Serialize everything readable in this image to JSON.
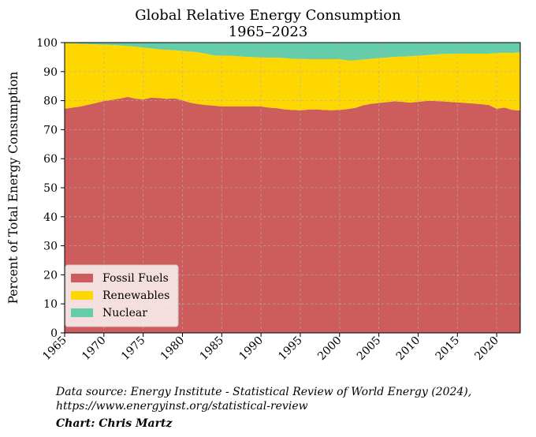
{
  "chart_data": {
    "type": "area",
    "stacked": true,
    "title_line1": "Global Relative Energy Consumption",
    "title_line2": "1965–2023",
    "xlabel": "",
    "ylabel": "Percent of Total Energy Consumption",
    "xlim": [
      1965,
      2023
    ],
    "ylim": [
      0,
      100
    ],
    "x_ticks": [
      1965,
      1970,
      1975,
      1980,
      1985,
      1990,
      1995,
      2000,
      2005,
      2010,
      2015,
      2020
    ],
    "y_ticks": [
      0,
      10,
      20,
      30,
      40,
      50,
      60,
      70,
      80,
      90,
      100
    ],
    "grid": true,
    "legend_position": "bottom-left",
    "x": [
      1965,
      1966,
      1967,
      1968,
      1969,
      1970,
      1971,
      1972,
      1973,
      1974,
      1975,
      1976,
      1977,
      1978,
      1979,
      1980,
      1981,
      1982,
      1983,
      1984,
      1985,
      1986,
      1987,
      1988,
      1989,
      1990,
      1991,
      1992,
      1993,
      1994,
      1995,
      1996,
      1997,
      1998,
      1999,
      2000,
      2001,
      2002,
      2003,
      2004,
      2005,
      2006,
      2007,
      2008,
      2009,
      2010,
      2011,
      2012,
      2013,
      2014,
      2015,
      2016,
      2017,
      2018,
      2019,
      2020,
      2021,
      2022,
      2023
    ],
    "series": [
      {
        "name": "Fossil Fuels",
        "color": "#cd5c5c",
        "values": [
          77.2,
          77.6,
          78.0,
          78.6,
          79.2,
          79.9,
          80.3,
          80.7,
          81.3,
          80.7,
          80.4,
          81.0,
          80.9,
          80.6,
          80.8,
          80.1,
          79.3,
          78.8,
          78.5,
          78.3,
          78.0,
          78.0,
          78.0,
          78.0,
          78.1,
          78.0,
          77.6,
          77.4,
          77.0,
          76.8,
          76.7,
          76.9,
          77.0,
          76.8,
          76.7,
          76.8,
          77.1,
          77.5,
          78.4,
          78.9,
          79.2,
          79.5,
          79.8,
          79.6,
          79.3,
          79.6,
          79.9,
          79.9,
          79.8,
          79.6,
          79.4,
          79.2,
          79.0,
          78.8,
          78.5,
          77.2,
          77.6,
          76.8,
          76.6
        ]
      },
      {
        "name": "Renewables",
        "color": "#ffd700",
        "values": [
          22.6,
          22.1,
          21.6,
          20.9,
          20.2,
          19.4,
          18.9,
          18.3,
          17.5,
          17.9,
          17.9,
          17.0,
          16.8,
          16.9,
          16.6,
          17.0,
          17.6,
          17.8,
          17.7,
          17.3,
          17.5,
          17.5,
          17.3,
          17.1,
          16.9,
          16.9,
          17.2,
          17.4,
          17.7,
          17.6,
          17.7,
          17.4,
          17.3,
          17.5,
          17.6,
          17.5,
          16.8,
          16.4,
          15.8,
          15.5,
          15.5,
          15.3,
          15.3,
          15.6,
          16.0,
          15.9,
          15.8,
          16.0,
          16.3,
          16.5,
          16.8,
          17.0,
          17.2,
          17.4,
          17.7,
          19.2,
          18.9,
          19.6,
          20.1
        ]
      },
      {
        "name": "Nuclear",
        "color": "#66cdaa",
        "values": [
          0.2,
          0.3,
          0.4,
          0.5,
          0.6,
          0.7,
          0.8,
          1.0,
          1.2,
          1.4,
          1.7,
          2.0,
          2.3,
          2.5,
          2.6,
          2.9,
          3.1,
          3.4,
          3.8,
          4.4,
          4.5,
          4.5,
          4.7,
          4.9,
          5.0,
          5.1,
          5.2,
          5.2,
          5.3,
          5.6,
          5.6,
          5.7,
          5.7,
          5.7,
          5.7,
          5.7,
          6.1,
          6.1,
          5.8,
          5.6,
          5.3,
          5.2,
          4.9,
          4.8,
          4.7,
          4.5,
          4.3,
          4.1,
          3.9,
          3.9,
          3.8,
          3.8,
          3.8,
          3.8,
          3.8,
          3.6,
          3.5,
          3.6,
          3.3
        ]
      }
    ]
  },
  "source": {
    "line1": "Data source: Energy Institute - Statistical Review of World Energy (2024),",
    "line2": "https://www.energyinst.org/statistical-review",
    "credit": "Chart: Chris Martz"
  }
}
